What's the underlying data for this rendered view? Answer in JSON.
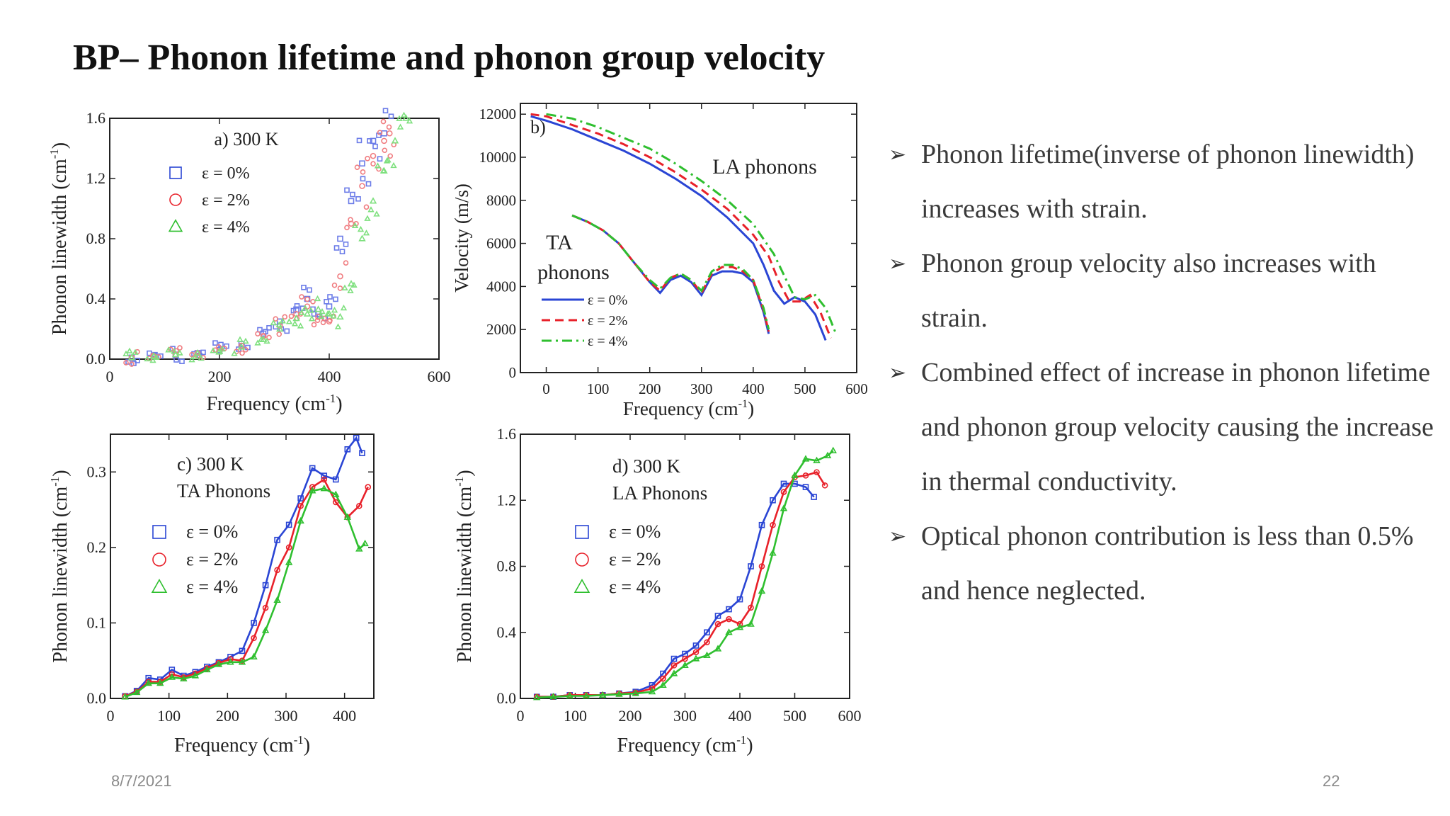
{
  "slide": {
    "title": "BP– Phonon lifetime and phonon group velocity",
    "date": "8/7/2021",
    "page_number": "22",
    "bullets": [
      "Phonon lifetime(inverse of phonon linewidth) increases with strain.",
      "Phonon group velocity also increases with strain.",
      "Combined effect of increase in phonon lifetime and phonon group velocity causing the increase in thermal conductivity.",
      "Optical phonon contribution is less than 0.5% and hence neglected."
    ],
    "bullet_icon": "arrowhead-bullet-icon"
  },
  "colors": {
    "e0": "#2a45d4",
    "e2": "#e8212a",
    "e4": "#2fbf2f",
    "e4_light": "#7fe07f"
  },
  "chart_data": [
    {
      "id": "a",
      "type": "scatter",
      "title": "a) 300 K",
      "xlabel": "Frequency (cm-1)",
      "ylabel": "Phonon linewidth (cm-1)",
      "xlim": [
        0,
        600
      ],
      "ylim": [
        0,
        1.6
      ],
      "xticks": [
        0,
        200,
        400,
        600
      ],
      "yticks": [
        0.0,
        0.4,
        0.8,
        1.2,
        1.6
      ],
      "legend": "upper-left",
      "series": [
        {
          "name": "ε = 0%",
          "marker": "square",
          "x": [
            40,
            80,
            120,
            160,
            200,
            240,
            280,
            310,
            340,
            360,
            380,
            400,
            420,
            440,
            460,
            480,
            500
          ],
          "y": [
            0.01,
            0.02,
            0.03,
            0.04,
            0.06,
            0.1,
            0.17,
            0.25,
            0.33,
            0.4,
            0.3,
            0.35,
            0.8,
            1.05,
            1.3,
            1.45,
            1.5
          ]
        },
        {
          "name": "ε = 2%",
          "marker": "circle",
          "x": [
            40,
            80,
            120,
            160,
            200,
            240,
            280,
            310,
            340,
            360,
            380,
            400,
            420,
            440,
            460,
            480,
            500,
            510
          ],
          "y": [
            0.01,
            0.02,
            0.03,
            0.04,
            0.05,
            0.09,
            0.15,
            0.22,
            0.3,
            0.35,
            0.28,
            0.25,
            0.55,
            0.9,
            1.15,
            1.35,
            1.45,
            1.5
          ]
        },
        {
          "name": "ε = 4%",
          "marker": "triangle",
          "x": [
            40,
            80,
            120,
            160,
            200,
            240,
            280,
            310,
            340,
            360,
            380,
            400,
            420,
            440,
            460,
            480,
            500,
            520,
            540
          ],
          "y": [
            0.01,
            0.02,
            0.03,
            0.04,
            0.05,
            0.08,
            0.13,
            0.2,
            0.27,
            0.3,
            0.33,
            0.3,
            0.28,
            0.5,
            0.8,
            1.05,
            1.25,
            1.45,
            1.6
          ]
        }
      ]
    },
    {
      "id": "b",
      "type": "line",
      "title": "b)",
      "xlabel": "Frequency (cm-1)",
      "ylabel": "Velocity (m/s)",
      "xlim": [
        -50,
        600
      ],
      "ylim": [
        0,
        12500
      ],
      "xticks": [
        0,
        100,
        200,
        300,
        400,
        500,
        600
      ],
      "yticks": [
        0,
        2000,
        4000,
        6000,
        8000,
        10000,
        12000
      ],
      "annotations": [
        "LA phonons",
        "TA",
        "phonons"
      ],
      "legend": "lower-left",
      "series": [
        {
          "name": "ε = 0%",
          "dash": "solid",
          "branch": "LA",
          "x": [
            -30,
            0,
            50,
            100,
            150,
            200,
            250,
            300,
            350,
            400,
            420,
            440,
            460,
            480,
            500,
            520,
            540
          ],
          "y": [
            11900,
            11700,
            11300,
            10800,
            10300,
            9700,
            9000,
            8200,
            7200,
            6000,
            5000,
            3800,
            3200,
            3500,
            3300,
            2700,
            1500
          ]
        },
        {
          "name": "ε = 0%",
          "dash": "solid",
          "branch": "TA",
          "x": [
            50,
            80,
            110,
            140,
            170,
            200,
            220,
            240,
            260,
            280,
            300,
            320,
            340,
            360,
            380,
            400,
            420,
            430
          ],
          "y": [
            7300,
            7000,
            6600,
            6000,
            5100,
            4200,
            3700,
            4300,
            4500,
            4200,
            3600,
            4500,
            4700,
            4700,
            4600,
            4200,
            2800,
            1800
          ]
        },
        {
          "name": "ε = 2%",
          "dash": "dashed",
          "branch": "LA",
          "x": [
            -30,
            0,
            50,
            100,
            150,
            200,
            250,
            300,
            350,
            400,
            430,
            450,
            470,
            490,
            510,
            530,
            550
          ],
          "y": [
            12000,
            11900,
            11500,
            11100,
            10600,
            10000,
            9300,
            8500,
            7600,
            6400,
            5400,
            4200,
            3300,
            3300,
            3600,
            2800,
            1600
          ]
        },
        {
          "name": "ε = 2%",
          "dash": "dashed",
          "branch": "TA",
          "x": [
            50,
            80,
            110,
            140,
            170,
            200,
            220,
            240,
            260,
            280,
            300,
            320,
            340,
            360,
            380,
            400,
            420,
            430
          ],
          "y": [
            7300,
            7000,
            6600,
            6000,
            5100,
            4200,
            3800,
            4400,
            4600,
            4300,
            3700,
            4600,
            4900,
            4900,
            4700,
            4300,
            2900,
            1900
          ]
        },
        {
          "name": "ε = 4%",
          "dash": "dashdot",
          "branch": "LA",
          "x": [
            0,
            50,
            100,
            150,
            200,
            250,
            300,
            350,
            400,
            440,
            460,
            480,
            500,
            520,
            540,
            560
          ],
          "y": [
            12000,
            11800,
            11400,
            10900,
            10400,
            9700,
            8900,
            8000,
            6900,
            5500,
            4500,
            3500,
            3400,
            3600,
            3000,
            1800
          ]
        },
        {
          "name": "ε = 4%",
          "dash": "dashdot",
          "branch": "TA",
          "x": [
            50,
            80,
            110,
            140,
            170,
            200,
            220,
            240,
            260,
            280,
            300,
            320,
            340,
            360,
            380,
            400,
            420,
            430
          ],
          "y": [
            7300,
            7000,
            6600,
            6000,
            5100,
            4300,
            3900,
            4400,
            4600,
            4300,
            3800,
            4700,
            5000,
            5000,
            4800,
            4300,
            3000,
            2000
          ]
        }
      ]
    },
    {
      "id": "c",
      "type": "line",
      "title": "c) 300 K",
      "subtitle": "TA Phonons",
      "xlabel": "Frequency (cm-1)",
      "ylabel": "Phonon linewidth (cm-1)",
      "xlim": [
        0,
        450
      ],
      "ylim": [
        0,
        0.35
      ],
      "xticks": [
        0,
        100,
        200,
        300,
        400
      ],
      "yticks": [
        0.0,
        0.1,
        0.2,
        0.3
      ],
      "legend": "left",
      "series": [
        {
          "name": "ε = 0%",
          "marker": "square",
          "x": [
            25,
            45,
            65,
            85,
            105,
            125,
            145,
            165,
            185,
            205,
            225,
            245,
            265,
            285,
            305,
            325,
            345,
            365,
            385,
            405,
            420,
            430
          ],
          "y": [
            0.003,
            0.01,
            0.027,
            0.025,
            0.038,
            0.03,
            0.035,
            0.042,
            0.048,
            0.055,
            0.063,
            0.1,
            0.15,
            0.21,
            0.23,
            0.265,
            0.305,
            0.295,
            0.29,
            0.33,
            0.345,
            0.325
          ]
        },
        {
          "name": "ε = 2%",
          "marker": "circle",
          "x": [
            25,
            45,
            65,
            85,
            105,
            125,
            145,
            165,
            185,
            205,
            225,
            245,
            265,
            285,
            305,
            325,
            345,
            365,
            385,
            405,
            425,
            440
          ],
          "y": [
            0.003,
            0.009,
            0.022,
            0.022,
            0.032,
            0.028,
            0.033,
            0.04,
            0.047,
            0.052,
            0.05,
            0.08,
            0.12,
            0.17,
            0.2,
            0.255,
            0.28,
            0.29,
            0.26,
            0.24,
            0.255,
            0.28
          ]
        },
        {
          "name": "ε = 4%",
          "marker": "triangle",
          "x": [
            25,
            45,
            65,
            85,
            105,
            125,
            145,
            165,
            185,
            205,
            225,
            245,
            265,
            285,
            305,
            325,
            345,
            365,
            385,
            405,
            425,
            435
          ],
          "y": [
            0.002,
            0.008,
            0.02,
            0.02,
            0.028,
            0.026,
            0.03,
            0.038,
            0.045,
            0.048,
            0.048,
            0.055,
            0.09,
            0.13,
            0.18,
            0.235,
            0.275,
            0.278,
            0.27,
            0.24,
            0.198,
            0.205
          ]
        }
      ]
    },
    {
      "id": "d",
      "type": "line",
      "title": "d) 300 K",
      "subtitle": "LA Phonons",
      "xlabel": "Frequency (cm-1)",
      "ylabel": "Phonon linewidth (cm-1)",
      "xlim": [
        0,
        600
      ],
      "ylim": [
        0,
        1.6
      ],
      "xticks": [
        0,
        100,
        200,
        300,
        400,
        500,
        600
      ],
      "yticks": [
        0.0,
        0.4,
        0.8,
        1.2,
        1.6
      ],
      "legend": "left",
      "series": [
        {
          "name": "ε = 0%",
          "marker": "square",
          "x": [
            30,
            60,
            90,
            120,
            150,
            180,
            210,
            240,
            260,
            280,
            300,
            320,
            340,
            360,
            380,
            400,
            420,
            440,
            460,
            480,
            500,
            520,
            535
          ],
          "y": [
            0.01,
            0.01,
            0.02,
            0.02,
            0.02,
            0.03,
            0.04,
            0.08,
            0.15,
            0.24,
            0.27,
            0.32,
            0.4,
            0.5,
            0.54,
            0.6,
            0.8,
            1.05,
            1.2,
            1.3,
            1.3,
            1.28,
            1.22
          ]
        },
        {
          "name": "ε = 2%",
          "marker": "circle",
          "x": [
            30,
            60,
            90,
            120,
            150,
            180,
            210,
            240,
            260,
            280,
            300,
            320,
            340,
            360,
            380,
            400,
            420,
            440,
            460,
            480,
            500,
            520,
            540,
            555
          ],
          "y": [
            0.01,
            0.01,
            0.02,
            0.02,
            0.02,
            0.03,
            0.035,
            0.06,
            0.12,
            0.2,
            0.24,
            0.28,
            0.34,
            0.45,
            0.48,
            0.45,
            0.55,
            0.8,
            1.05,
            1.25,
            1.34,
            1.35,
            1.37,
            1.29
          ]
        },
        {
          "name": "ε = 4%",
          "marker": "triangle",
          "x": [
            30,
            60,
            90,
            120,
            150,
            180,
            210,
            240,
            260,
            280,
            300,
            320,
            340,
            360,
            380,
            400,
            420,
            440,
            460,
            480,
            500,
            520,
            540,
            560,
            570
          ],
          "y": [
            0.005,
            0.01,
            0.015,
            0.015,
            0.02,
            0.025,
            0.03,
            0.04,
            0.08,
            0.15,
            0.2,
            0.24,
            0.26,
            0.3,
            0.4,
            0.43,
            0.45,
            0.65,
            0.88,
            1.15,
            1.35,
            1.45,
            1.44,
            1.47,
            1.5
          ]
        }
      ]
    }
  ]
}
